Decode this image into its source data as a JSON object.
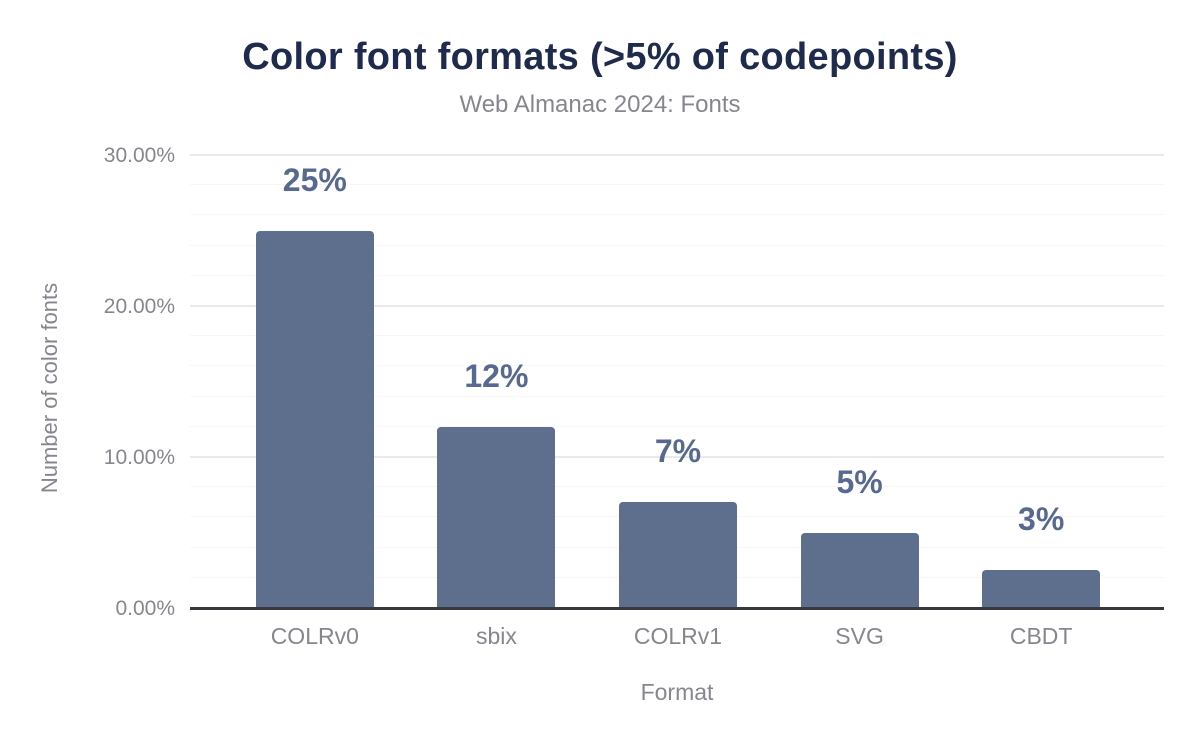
{
  "chart_data": {
    "type": "bar",
    "title": "Color font formats (>5% of codepoints)",
    "subtitle": "Web Almanac 2024: Fonts",
    "xlabel": "Format",
    "ylabel": "Number of color fonts",
    "categories": [
      "COLRv0",
      "sbix",
      "COLRv1",
      "SVG",
      "CBDT"
    ],
    "values": [
      25,
      12,
      7,
      5,
      2.5
    ],
    "bar_labels": [
      "25%",
      "12%",
      "7%",
      "5%",
      "3%"
    ],
    "ylim": [
      0,
      30
    ],
    "y_ticks": [
      {
        "value": 30,
        "label": "30.00%"
      },
      {
        "value": 20,
        "label": "20.00%"
      },
      {
        "value": 10,
        "label": "10.00%"
      },
      {
        "value": 0,
        "label": "0.00%"
      }
    ],
    "grid": {
      "major_step": 10,
      "minor_step": 2
    },
    "legend": "none",
    "colors": {
      "bar": "#5e6f8d",
      "title": "#1f2b4c",
      "subtitle": "#85878c",
      "axis_text": "#85878e",
      "value_label": "#58698f",
      "axis_line": "#36393d",
      "grid_major": "#eaeaea",
      "grid_minor": "#f7f7f7",
      "background": "#ffffff"
    }
  }
}
